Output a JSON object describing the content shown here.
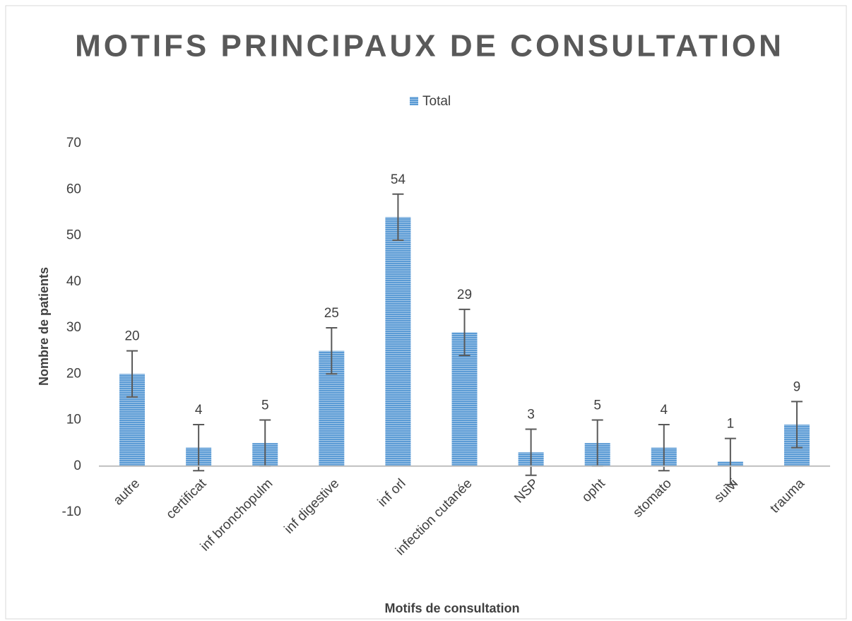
{
  "chart_data": {
    "type": "bar",
    "title": "MOTIFS PRINCIPAUX DE CONSULTATION",
    "x_label": "Motifs de consultation",
    "y_label": "Nombre de patients",
    "categories": [
      "autre",
      "certificat",
      "inf bronchopulm",
      "inf digestive",
      "inf orl",
      "infection cutanée",
      "NSP",
      "opht",
      "stomato",
      "suivi",
      "trauma"
    ],
    "series": [
      {
        "name": "Total",
        "color": "#5b9bd5",
        "values": [
          20,
          4,
          5,
          25,
          54,
          29,
          3,
          5,
          4,
          1,
          9
        ],
        "errors": [
          5,
          5,
          5,
          5,
          5,
          5,
          5,
          5,
          5,
          5,
          5
        ]
      }
    ],
    "ylim": [
      -10,
      70
    ],
    "yticks": [
      -10,
      0,
      10,
      20,
      30,
      40,
      50,
      60,
      70
    ],
    "grid": false,
    "legend": "top"
  }
}
